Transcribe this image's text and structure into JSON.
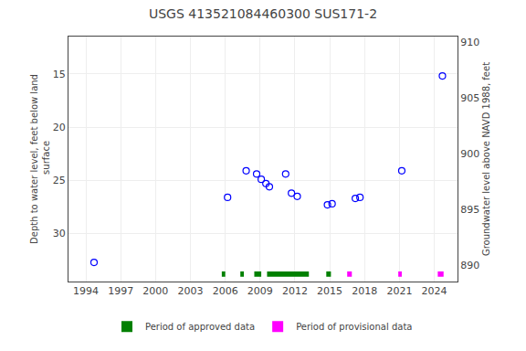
{
  "chart_data": {
    "type": "scatter",
    "title": "USGS 413521084460300 SUS171-2",
    "ylabel": "Depth to water level, feet below land\n surface",
    "y2label": "Groundwater level above NAVD 1988, feet",
    "x": [
      1994.7,
      2006.2,
      2007.8,
      2008.7,
      2009.1,
      2009.5,
      2009.8,
      2011.2,
      2011.7,
      2012.2,
      2014.8,
      2015.2,
      2017.2,
      2017.6,
      2021.2,
      2024.7
    ],
    "values": [
      32.7,
      26.6,
      24.1,
      24.4,
      24.9,
      25.3,
      25.6,
      24.4,
      26.2,
      26.5,
      27.3,
      27.2,
      26.7,
      26.6,
      24.1,
      15.2
    ],
    "color": "blue",
    "marker": "circle-open",
    "periods": [
      {
        "name": "Period of approved data",
        "color": "#008000",
        "spans": [
          [
            2005.7,
            2006.0
          ],
          [
            2007.3,
            2007.6
          ],
          [
            2008.5,
            2009.1
          ],
          [
            2009.6,
            2013.2
          ],
          [
            2014.7,
            2015.1
          ]
        ]
      },
      {
        "name": "Period of provisional data",
        "color": "#ff00ff",
        "spans": [
          [
            2016.5,
            2016.9
          ],
          [
            2020.9,
            2021.2
          ],
          [
            2024.3,
            2024.8
          ]
        ]
      }
    ],
    "bar_y": 33.8,
    "bar_height": 0.5,
    "xlim": [
      1992.5,
      2026.0
    ],
    "xticks": [
      1994,
      1997,
      2000,
      2003,
      2006,
      2009,
      2012,
      2015,
      2018,
      2021,
      2024
    ],
    "ylim": [
      34.5,
      11.5
    ],
    "yticks": [
      15,
      20,
      25,
      30
    ],
    "y2lim": [
      888.5,
      910.5
    ],
    "y2ticks": [
      890,
      895,
      900,
      905,
      910
    ],
    "grid": true,
    "legend": "bottom"
  }
}
